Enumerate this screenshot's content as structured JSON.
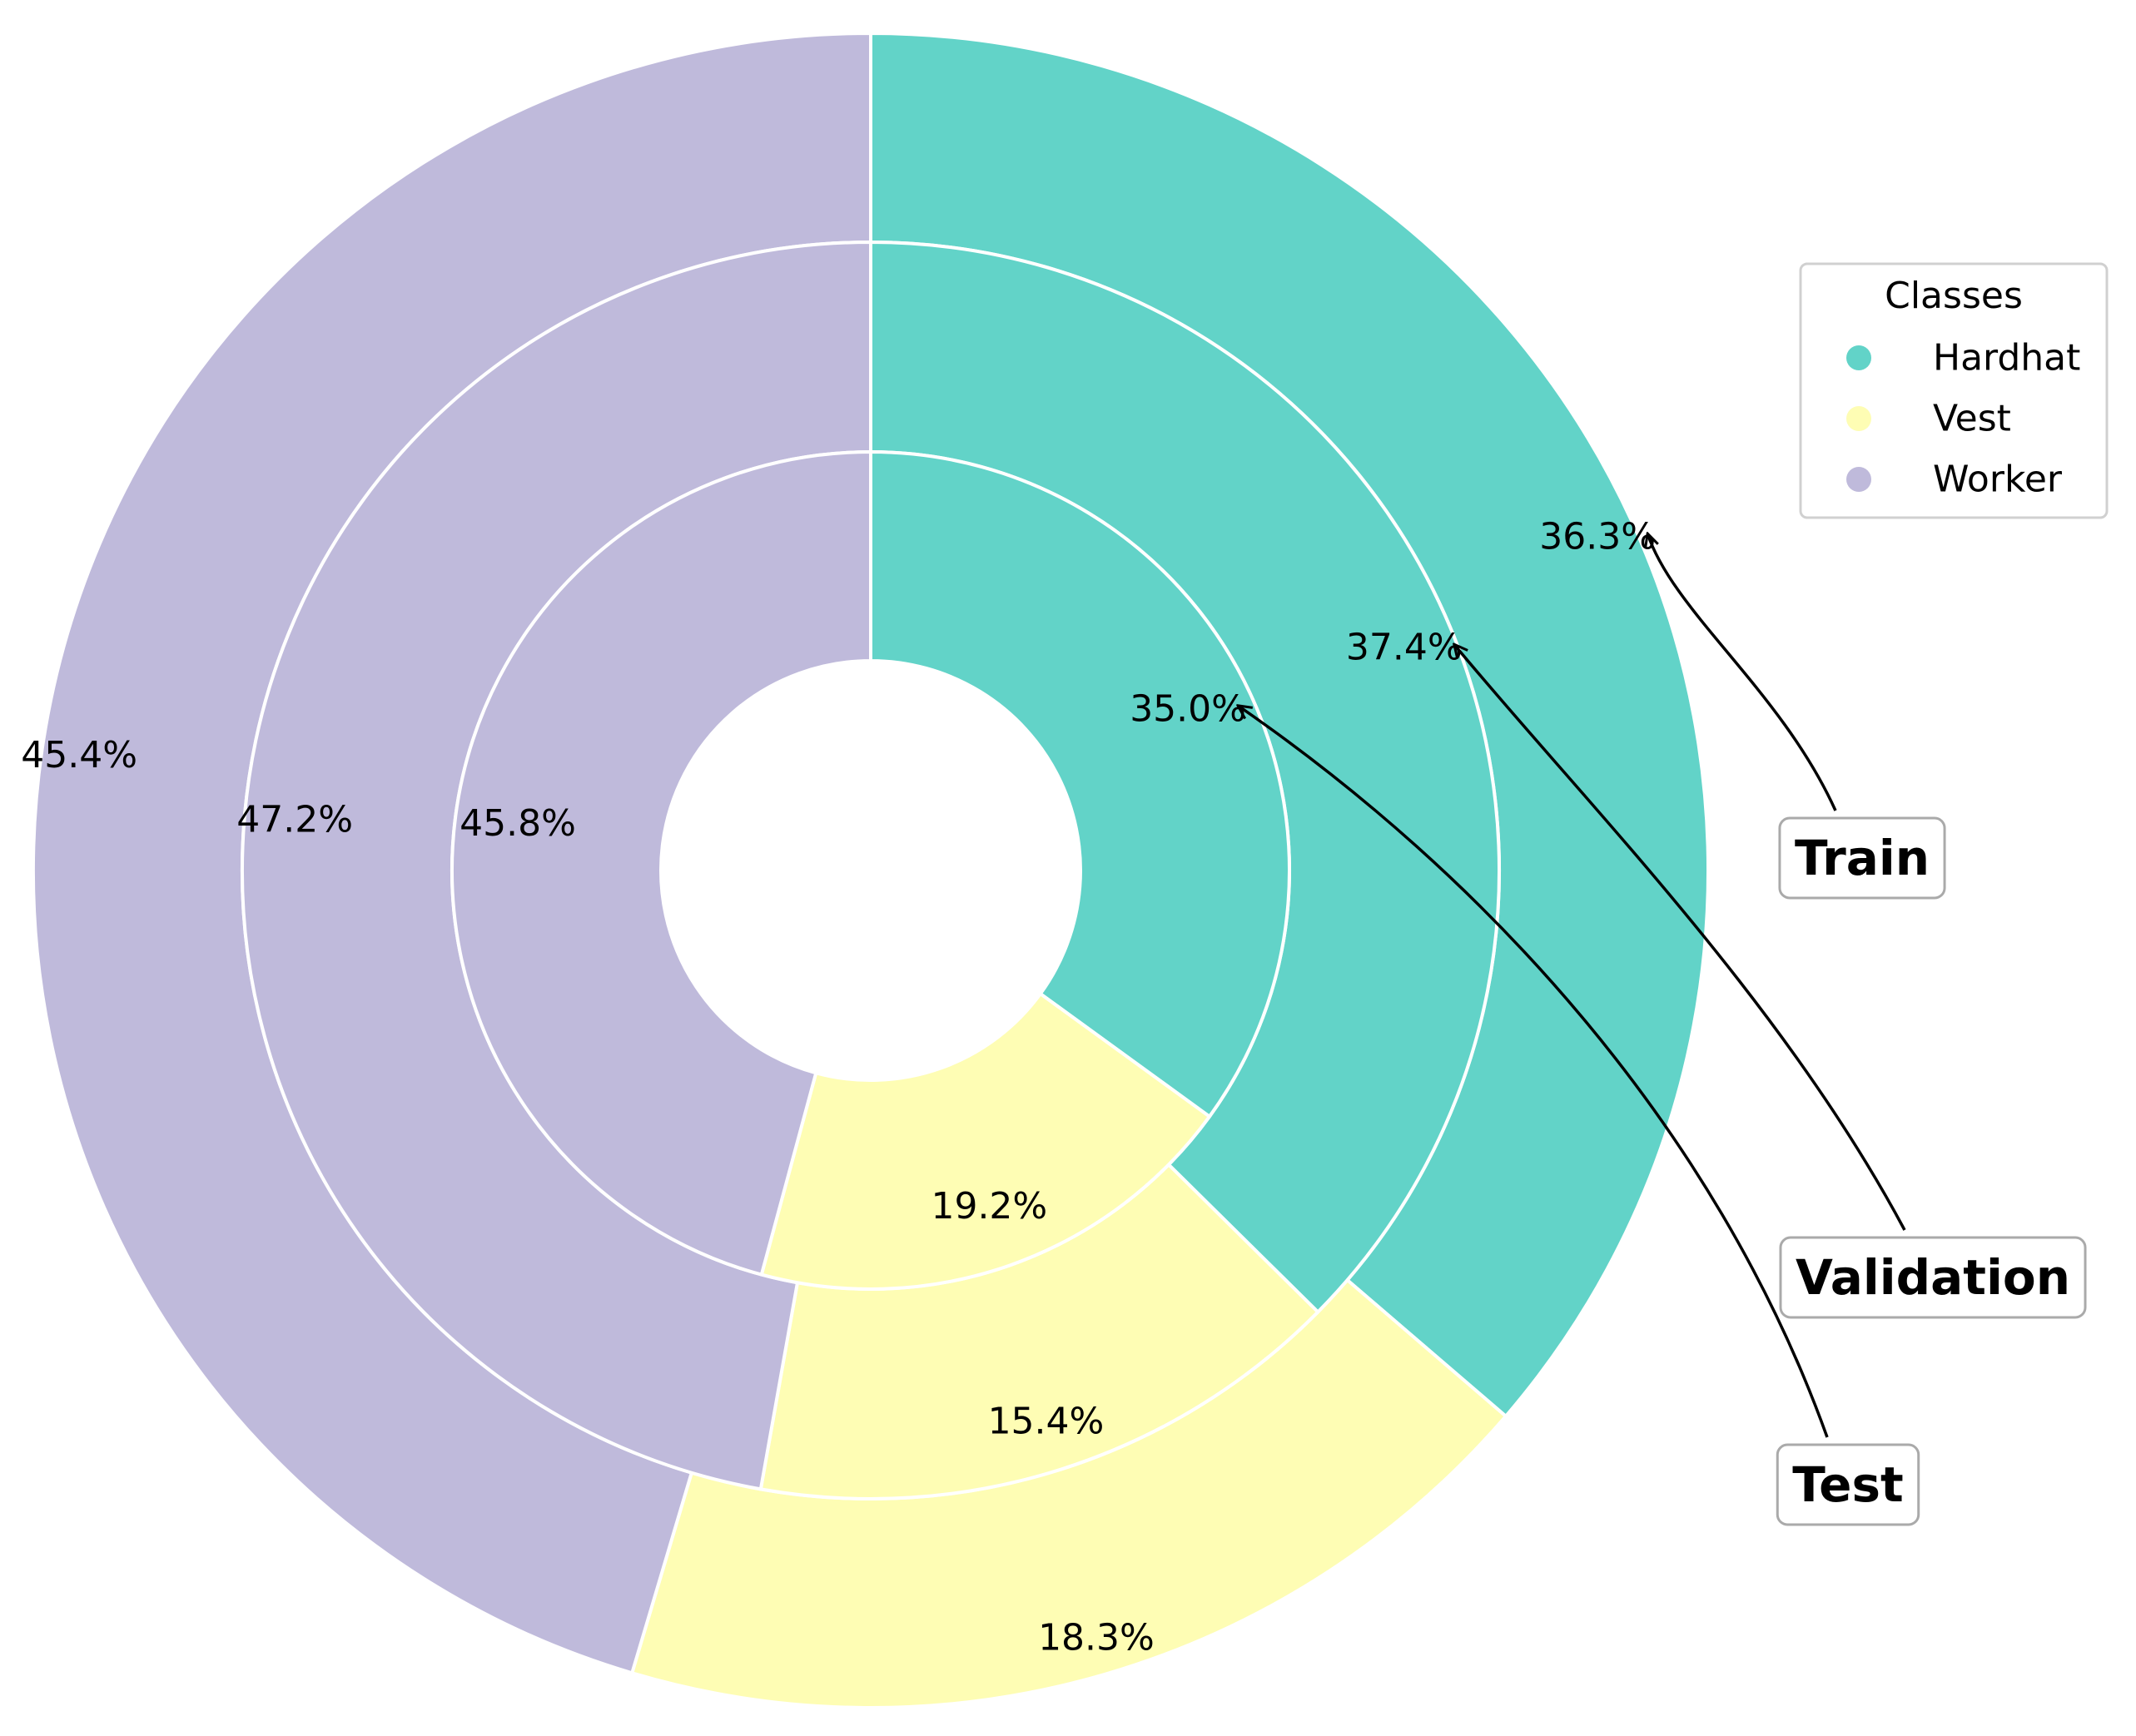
{
  "chart_data": {
    "type": "pie",
    "subtype": "nested-donut",
    "title": "",
    "categories": [
      "Hardhat",
      "Vest",
      "Worker"
    ],
    "colors": {
      "Hardhat": "#62d3c8",
      "Vest": "#fefdb4",
      "Worker": "#bfbadb"
    },
    "rings": [
      {
        "name": "Train",
        "values": [
          36.3,
          18.3,
          45.4
        ],
        "labels": [
          "36.3%",
          "18.3%",
          "45.4%"
        ]
      },
      {
        "name": "Validation",
        "values": [
          37.4,
          15.4,
          47.2
        ],
        "labels": [
          "37.4%",
          "15.4%",
          "47.2%"
        ]
      },
      {
        "name": "Test",
        "values": [
          35.0,
          19.2,
          45.8
        ],
        "labels": [
          "35.0%",
          "19.2%",
          "45.8%"
        ]
      }
    ],
    "legend": {
      "title": "Classes",
      "placement": "top-right",
      "entries": [
        "Hardhat",
        "Vest",
        "Worker"
      ]
    },
    "start_angle_deg": 90,
    "direction": "clockwise"
  }
}
